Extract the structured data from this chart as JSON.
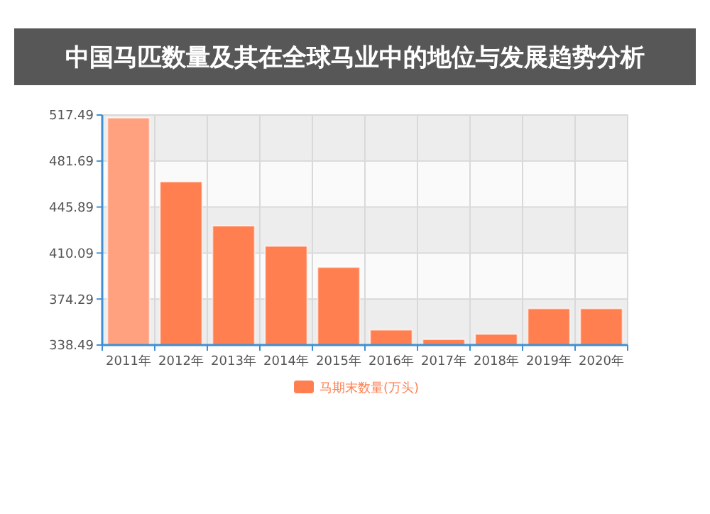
{
  "chart_data": {
    "type": "bar",
    "title": "中国马匹数量及其在全球马业中的地位与发展趋势分析",
    "categories": [
      "2011年",
      "2012年",
      "2013年",
      "2014年",
      "2015年",
      "2016年",
      "2017年",
      "2018年",
      "2019年",
      "2020年"
    ],
    "series": [
      {
        "name": "马期末数量(万头)",
        "color": "#ff7f50",
        "colors": [
          "#ffa07f",
          "#ff7f50",
          "#ff7f50",
          "#ff7f50",
          "#ff7f50",
          "#ff7f50",
          "#ff7f50",
          "#ff7f50",
          "#ff7f50",
          "#ff7f50"
        ],
        "values": [
          515.3,
          465.6,
          431.3,
          415.5,
          399,
          350.3,
          342.9,
          347,
          366.9,
          366.9
        ]
      }
    ],
    "ylim": [
      338.49,
      517.49
    ],
    "yticks": [
      338.49,
      374.29,
      410.09,
      445.89,
      481.69,
      517.49
    ],
    "grid": true,
    "legend": "bottom"
  }
}
